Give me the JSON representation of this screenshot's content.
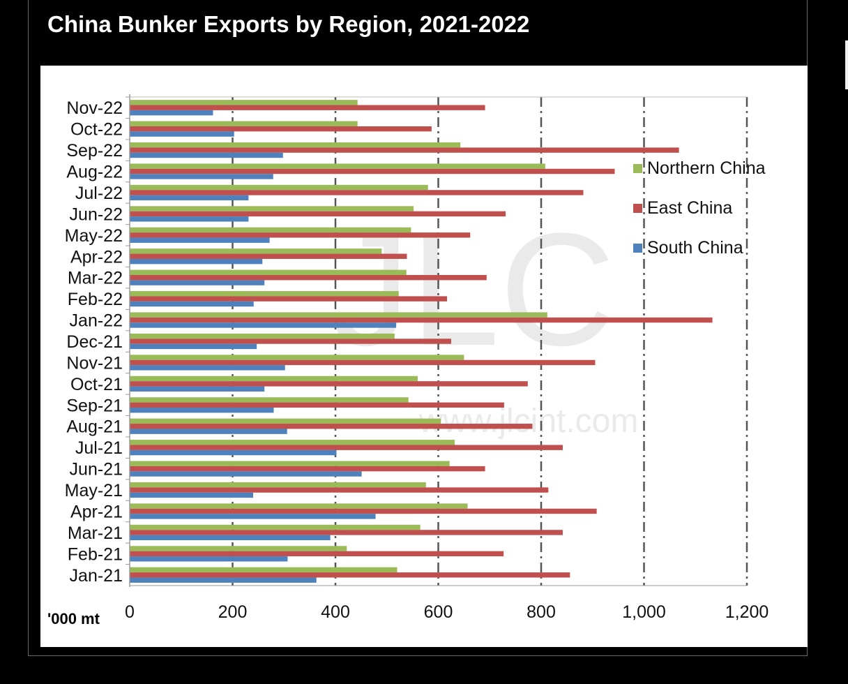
{
  "title": "China Bunker Exports by Region, 2021-2022",
  "chart_data": {
    "type": "bar",
    "orientation": "horizontal",
    "title": "China Bunker Exports by Region, 2021-2022",
    "unit_label": "'000 mt",
    "xlim": [
      0,
      1200
    ],
    "xticks": [
      "0",
      "200",
      "400",
      "600",
      "800",
      "1,000",
      "1,200"
    ],
    "xtick_values": [
      0,
      200,
      400,
      600,
      800,
      1000,
      1200
    ],
    "grid": "vertical dashed",
    "legend_position": "right",
    "watermark": [
      "JLC",
      "www.jlcint.com"
    ],
    "categories": [
      "Jan-21",
      "Feb-21",
      "Mar-21",
      "Apr-21",
      "May-21",
      "Jun-21",
      "Jul-21",
      "Aug-21",
      "Sep-21",
      "Oct-21",
      "Nov-21",
      "Dec-21",
      "Jan-22",
      "Feb-22",
      "Mar-22",
      "Apr-22",
      "May-22",
      "Jun-22",
      "Jul-22",
      "Aug-22",
      "Sep-22",
      "Oct-22",
      "Nov-22"
    ],
    "series": [
      {
        "name": "Northern China",
        "color": "#9bbb59",
        "values": [
          520,
          422,
          565,
          657,
          576,
          622,
          632,
          605,
          542,
          560,
          650,
          515,
          812,
          523,
          538,
          490,
          547,
          552,
          580,
          808,
          643,
          443,
          443
        ]
      },
      {
        "name": "East China",
        "color": "#c0504d",
        "values": [
          856,
          727,
          842,
          908,
          814,
          691,
          842,
          783,
          728,
          774,
          905,
          625,
          1133,
          617,
          694,
          539,
          662,
          731,
          882,
          943,
          1068,
          587,
          691
        ]
      },
      {
        "name": "South China",
        "color": "#4f81bd",
        "values": [
          363,
          307,
          390,
          478,
          240,
          451,
          402,
          306,
          280,
          262,
          302,
          247,
          518,
          241,
          262,
          258,
          272,
          231,
          231,
          279,
          298,
          203,
          162
        ]
      }
    ]
  }
}
